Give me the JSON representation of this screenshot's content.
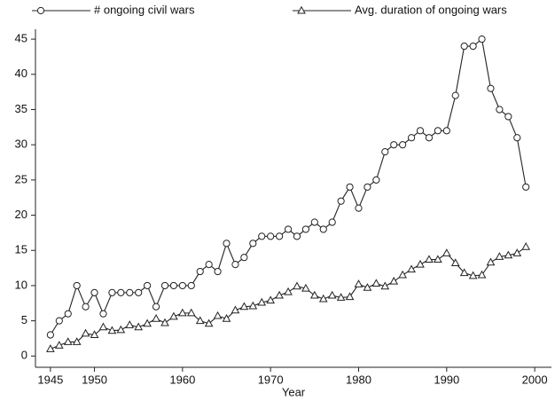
{
  "chart_data": {
    "type": "line",
    "x_label": "Year",
    "x": [
      1945,
      1946,
      1947,
      1948,
      1949,
      1950,
      1951,
      1952,
      1953,
      1954,
      1955,
      1956,
      1957,
      1958,
      1959,
      1960,
      1961,
      1962,
      1963,
      1964,
      1965,
      1966,
      1967,
      1968,
      1969,
      1970,
      1971,
      1972,
      1973,
      1974,
      1975,
      1976,
      1977,
      1978,
      1979,
      1980,
      1981,
      1982,
      1983,
      1984,
      1985,
      1986,
      1987,
      1988,
      1989,
      1990,
      1991,
      1992,
      1993,
      1994,
      1995,
      1996,
      1997,
      1998,
      1999
    ],
    "series": [
      {
        "name": "# ongoing civil wars",
        "color": "#222222",
        "marker": "circle",
        "values": [
          3,
          5,
          6,
          10,
          7,
          9,
          6,
          9,
          9,
          9,
          9,
          10,
          7,
          10,
          10,
          10,
          10,
          12,
          13,
          12,
          16,
          13,
          14,
          16,
          17,
          17,
          17,
          18,
          17,
          18,
          19,
          18,
          19,
          22,
          24,
          21,
          24,
          25,
          29,
          30,
          30,
          31,
          32,
          31,
          32,
          32,
          37,
          44,
          44,
          45,
          38,
          35,
          34,
          31,
          24
        ]
      },
      {
        "name": "Avg. duration of ongoing wars",
        "color": "#222222",
        "marker": "triangle",
        "values": [
          1,
          1.5,
          2,
          2,
          3.2,
          3,
          4.1,
          3.6,
          3.7,
          4.4,
          4.1,
          4.6,
          5.3,
          4.7,
          5.6,
          6.1,
          6.1,
          5,
          4.6,
          5.7,
          5.3,
          6.5,
          7,
          7.1,
          7.6,
          7.9,
          8.6,
          9.1,
          9.9,
          9.6,
          8.6,
          8.1,
          8.6,
          8.3,
          8.4,
          10.2,
          9.7,
          10.3,
          9.9,
          10.6,
          11.5,
          12.3,
          13,
          13.7,
          13.7,
          14.6,
          13.2,
          11.8,
          11.4,
          11.5,
          13.3,
          14.1,
          14.3,
          14.6,
          15.5
        ]
      }
    ],
    "xlim": [
      1943.3,
      2001.9
    ],
    "xticks": [
      1945,
      1950,
      1960,
      1970,
      1980,
      1990,
      2000
    ],
    "ylim": [
      -1.6,
      46.4
    ],
    "yticks": [
      0,
      5,
      10,
      15,
      20,
      25,
      30,
      35,
      40,
      45
    ],
    "legend": "top"
  }
}
